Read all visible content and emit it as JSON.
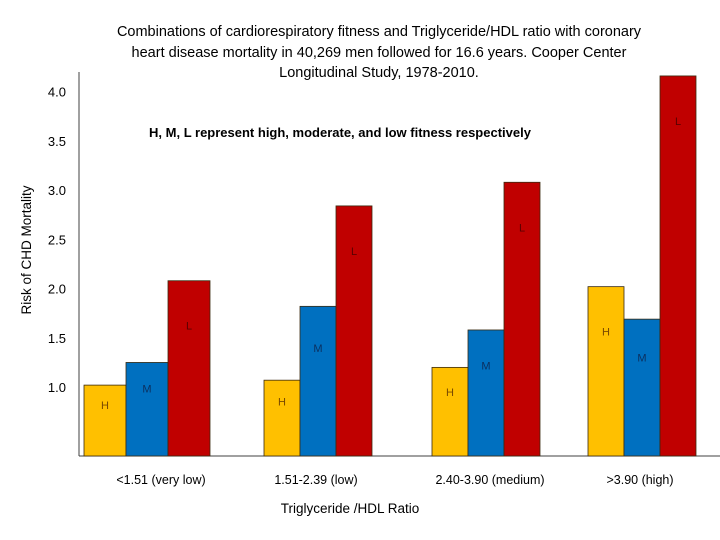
{
  "chart_data": {
    "type": "bar",
    "title_lines": [
      "Combinations  of cardiorespiratory fitness and Triglyceride/HDL  ratio with coronary",
      "heart disease mortality  in 40,269 men  followed  for 16.6 years. Cooper Center",
      "Longitudinal  Study, 1978-2010."
    ],
    "annotation": "H, M, L represent high, moderate, and low fitness respectively",
    "xlabel": "Triglyceride /HDL Ratio",
    "ylabel": "Risk of  CHD Mortality",
    "yticks": [
      "1.0",
      "1.5",
      "2.0",
      "2.5",
      "3.0",
      "3.5",
      "4.0"
    ],
    "ytick_values": [
      1.0,
      1.5,
      2.0,
      2.5,
      3.0,
      3.5,
      4.0
    ],
    "ylim": [
      0.3,
      4.2
    ],
    "grid": false,
    "categories": [
      "<1.51 (very low)",
      "1.51-2.39 (low)",
      "2.40-3.90 (medium)",
      ">3.90 (high)"
    ],
    "series": [
      {
        "name": "High fitness",
        "label": "H",
        "color": "#FFC000",
        "values": [
          1.02,
          1.07,
          1.2,
          2.02
        ]
      },
      {
        "name": "Moderate fitness",
        "label": "M",
        "color": "#0070C0",
        "values": [
          1.25,
          1.82,
          1.58,
          1.69
        ]
      },
      {
        "name": "Low fitness",
        "label": "L",
        "color": "#C00000",
        "values": [
          2.08,
          2.84,
          3.08,
          4.16
        ]
      }
    ]
  }
}
